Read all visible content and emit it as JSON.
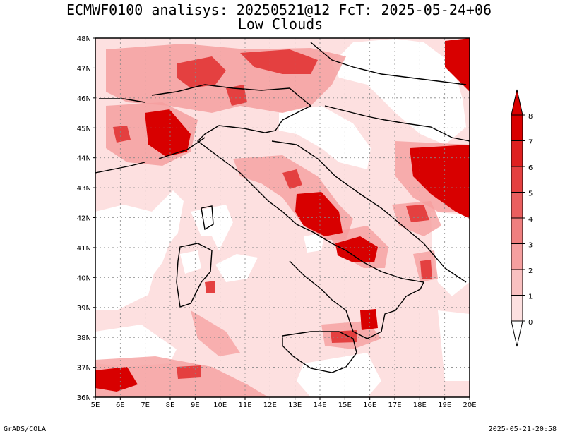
{
  "title": {
    "line1": "ECMWF0100 analisys: 20250521@12 FcT: 2025-05-24+06",
    "line2": "Low Clouds"
  },
  "axes": {
    "x_ticks": [
      "5E",
      "6E",
      "7E",
      "8E",
      "9E",
      "10E",
      "11E",
      "12E",
      "13E",
      "14E",
      "15E",
      "16E",
      "17E",
      "18E",
      "19E",
      "20E"
    ],
    "y_ticks": [
      "36N",
      "37N",
      "38N",
      "39N",
      "40N",
      "41N",
      "42N",
      "43N",
      "44N",
      "45N",
      "46N",
      "47N",
      "48N"
    ],
    "lon_range": [
      5,
      20
    ],
    "lat_range": [
      36,
      48
    ],
    "grid": "dotted"
  },
  "colorbar": {
    "labels": [
      "0",
      "1",
      "2",
      "3",
      "4",
      "5",
      "6",
      "7",
      "8"
    ],
    "colors": [
      "#ffffff",
      "#fde0e0",
      "#f9c0c0",
      "#f59f9f",
      "#ef7f7f",
      "#ea5f5f",
      "#e44040",
      "#de2020",
      "#d80000"
    ]
  },
  "footer": {
    "left": "GrADS/COLA",
    "right": "2025-05-21-20:58"
  }
}
